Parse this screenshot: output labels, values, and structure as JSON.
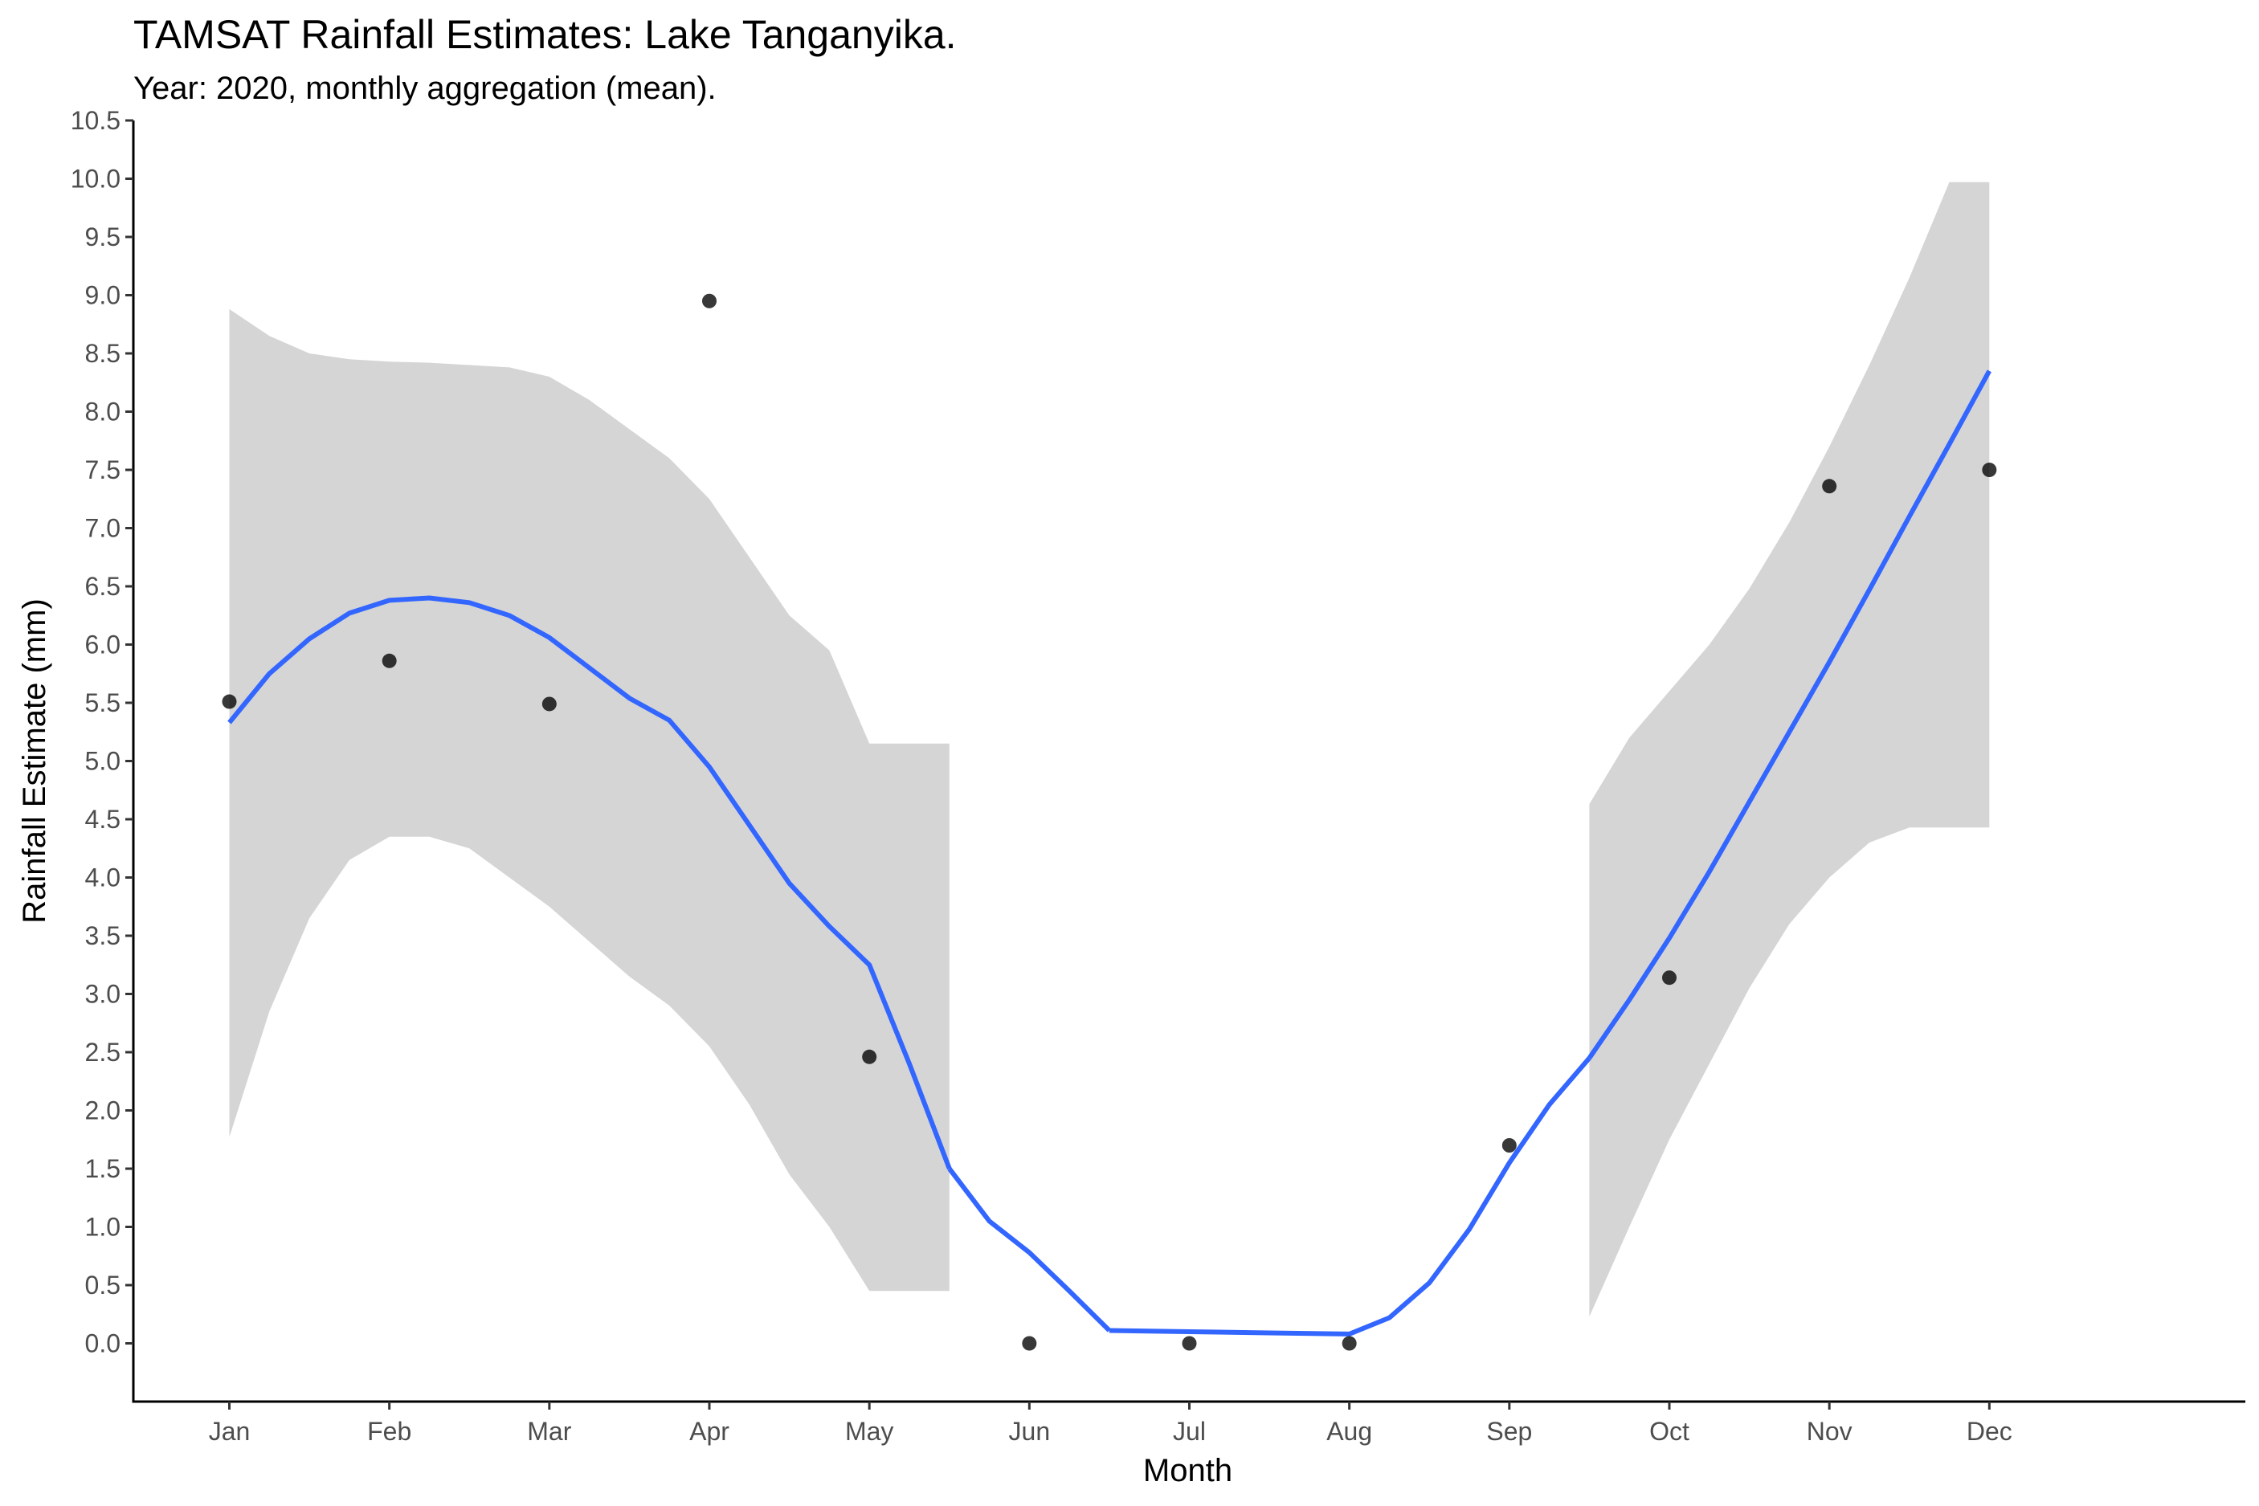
{
  "chart_data": {
    "type": "scatter",
    "title": "TAMSAT Rainfall Estimates: Lake Tanganyika.",
    "subtitle": "Year: 2020, monthly aggregation (mean).",
    "xlabel": "Month",
    "ylabel": "Rainfall Estimate (mm)",
    "categories": [
      "Jan",
      "Feb",
      "Mar",
      "Apr",
      "May",
      "Jun",
      "Jul",
      "Aug",
      "Sep",
      "Oct",
      "Nov",
      "Dec"
    ],
    "ylim": [
      -0.5,
      10.5
    ],
    "yticks": [
      "0.0",
      "0.5",
      "1.0",
      "1.5",
      "2.0",
      "2.5",
      "3.0",
      "3.5",
      "4.0",
      "4.5",
      "5.0",
      "5.5",
      "6.0",
      "6.5",
      "7.0",
      "7.5",
      "8.0",
      "8.5",
      "9.0",
      "9.5",
      "10.0",
      "10.5"
    ],
    "grid": false,
    "legend": "none",
    "points": [
      {
        "x": 1,
        "y": 5.51
      },
      {
        "x": 2,
        "y": 5.86
      },
      {
        "x": 3,
        "y": 5.49
      },
      {
        "x": 4,
        "y": 8.95
      },
      {
        "x": 5,
        "y": 2.46
      },
      {
        "x": 6,
        "y": 0.0
      },
      {
        "x": 7,
        "y": 0.0
      },
      {
        "x": 8,
        "y": 0.0
      },
      {
        "x": 9,
        "y": 1.7
      },
      {
        "x": 10,
        "y": 3.14
      },
      {
        "x": 11,
        "y": 7.36
      },
      {
        "x": 12,
        "y": 7.5
      }
    ],
    "smooth_segments": [
      {
        "x": [
          1,
          1.25,
          1.5,
          1.75,
          2,
          2.25,
          2.5,
          2.75,
          3,
          3.25,
          3.5,
          3.75,
          4,
          4.25,
          4.5,
          4.75,
          5,
          5.25,
          5.5
        ],
        "y": [
          5.33,
          5.75,
          6.05,
          6.27,
          6.38,
          6.4,
          6.36,
          6.25,
          6.06,
          5.8,
          5.54,
          5.35,
          4.95,
          4.45,
          3.95,
          3.58,
          3.25,
          2.4,
          1.5
        ],
        "lower": [
          1.77,
          2.85,
          3.65,
          4.15,
          4.35,
          4.35,
          4.25,
          4.0,
          3.75,
          3.45,
          3.15,
          2.9,
          2.55,
          2.05,
          1.45,
          1.0,
          0.45,
          0.45,
          0.45
        ],
        "upper": [
          8.88,
          8.65,
          8.5,
          8.45,
          8.43,
          8.42,
          8.4,
          8.38,
          8.3,
          8.1,
          7.85,
          7.6,
          7.25,
          6.75,
          6.25,
          5.95,
          5.15,
          5.15,
          5.15
        ]
      },
      {
        "x": [
          5.5,
          5.75,
          6,
          6.25,
          6.5
        ],
        "y": [
          1.5,
          1.05,
          0.78,
          0.45,
          0.11
        ]
      },
      {
        "x": [
          6.5,
          7,
          7.5,
          8,
          8.25,
          8.5,
          8.75,
          9,
          9.25,
          9.5
        ],
        "y": [
          0.11,
          0.1,
          0.09,
          0.08,
          0.22,
          0.52,
          0.98,
          1.55,
          2.05,
          2.45
        ]
      },
      {
        "x": [
          9.5,
          9.75,
          10,
          10.25,
          10.5,
          10.75,
          11,
          11.25,
          11.5,
          11.75,
          12
        ],
        "y": [
          2.45,
          2.95,
          3.48,
          4.05,
          4.65,
          5.25,
          5.85,
          6.47,
          7.1,
          7.72,
          8.35
        ],
        "lower": [
          0.23,
          1.0,
          1.75,
          2.4,
          3.05,
          3.6,
          4.0,
          4.3,
          4.43,
          4.43,
          4.43
        ],
        "upper": [
          4.63,
          5.2,
          5.6,
          6.0,
          6.48,
          7.05,
          7.7,
          8.4,
          9.15,
          9.97,
          9.97
        ]
      }
    ],
    "colors": {
      "line": "#3366ff",
      "band": "#d5d5d5",
      "points": "#000000",
      "axis": "#000000"
    }
  }
}
